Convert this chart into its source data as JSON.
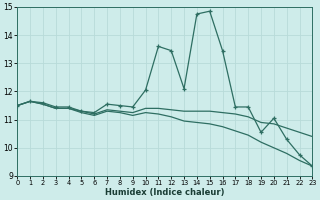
{
  "xlabel": "Humidex (Indice chaleur)",
  "xlim": [
    0,
    23
  ],
  "ylim": [
    9,
    15
  ],
  "yticks": [
    9,
    10,
    11,
    12,
    13,
    14,
    15
  ],
  "xticks": [
    0,
    1,
    2,
    3,
    4,
    5,
    6,
    7,
    8,
    9,
    10,
    11,
    12,
    13,
    14,
    15,
    16,
    17,
    18,
    19,
    20,
    21,
    22,
    23
  ],
  "bg_color": "#ceecea",
  "grid_color": "#b8dbd9",
  "line_color": "#2e6e62",
  "lines": [
    {
      "x": [
        0,
        1,
        2,
        3,
        4,
        5,
        6,
        7,
        8,
        9,
        10,
        11,
        12,
        13,
        14,
        15,
        16,
        17,
        18,
        19,
        20,
        21,
        22,
        23
      ],
      "y": [
        11.5,
        11.65,
        11.6,
        11.45,
        11.45,
        11.3,
        11.25,
        11.55,
        11.5,
        11.45,
        12.05,
        13.6,
        13.45,
        12.1,
        14.75,
        14.85,
        13.45,
        11.45,
        11.45,
        10.55,
        11.05,
        10.3,
        9.75,
        9.35
      ],
      "marker": true
    },
    {
      "x": [
        0,
        1,
        2,
        3,
        4,
        5,
        6,
        7,
        8,
        9,
        10,
        11,
        12,
        13,
        14,
        15,
        16,
        17,
        18,
        19,
        20,
        21,
        22,
        23
      ],
      "y": [
        11.5,
        11.65,
        11.55,
        11.4,
        11.4,
        11.3,
        11.2,
        11.35,
        11.3,
        11.25,
        11.4,
        11.4,
        11.35,
        11.3,
        11.3,
        11.3,
        11.25,
        11.2,
        11.1,
        10.9,
        10.85,
        10.7,
        10.55,
        10.4
      ],
      "marker": false
    },
    {
      "x": [
        0,
        1,
        2,
        3,
        4,
        5,
        6,
        7,
        8,
        9,
        10,
        11,
        12,
        13,
        14,
        15,
        16,
        17,
        18,
        19,
        20,
        21,
        22,
        23
      ],
      "y": [
        11.5,
        11.65,
        11.55,
        11.4,
        11.4,
        11.25,
        11.15,
        11.3,
        11.25,
        11.15,
        11.25,
        11.2,
        11.1,
        10.95,
        10.9,
        10.85,
        10.75,
        10.6,
        10.45,
        10.2,
        10.0,
        9.8,
        9.55,
        9.35
      ],
      "marker": false
    }
  ]
}
